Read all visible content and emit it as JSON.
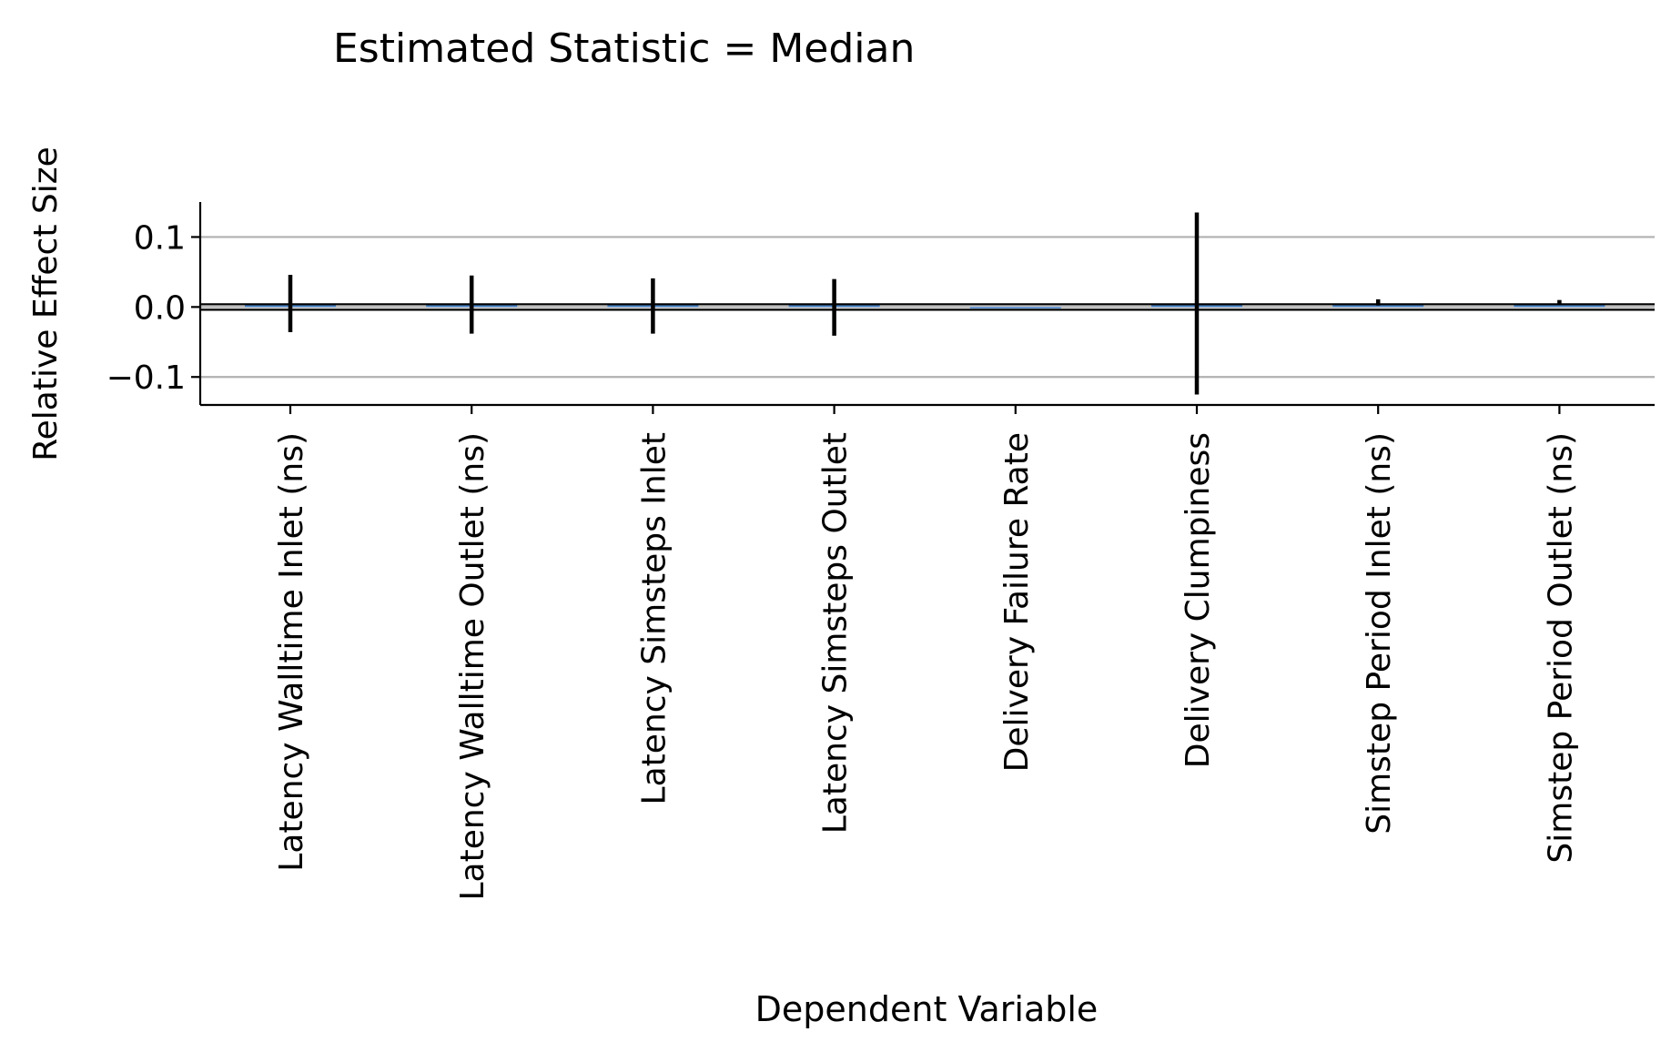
{
  "chart_data": {
    "type": "bar",
    "title": "Estimated Statistic = Median",
    "xlabel": "Dependent Variable",
    "ylabel": "Relative Effect Size",
    "ylim": [
      -0.14,
      0.15
    ],
    "yticks": [
      0.1,
      0.0,
      -0.1
    ],
    "ytick_labels": [
      "0.1",
      "0.0",
      "−0.1"
    ],
    "grid": "horizontal",
    "reference_line": 0.0,
    "categories": [
      "Latency Walltime Inlet (ns)",
      "Latency Walltime Outlet (ns)",
      "Latency Simsteps Inlet",
      "Latency Simsteps Outlet",
      "Delivery Failure Rate",
      "Delivery Clumpiness",
      "Simstep Period Inlet (ns)",
      "Simstep Period Outlet (ns)"
    ],
    "values": [
      0.004,
      0.004,
      0.003,
      0.003,
      0.0,
      0.004,
      0.004,
      0.004
    ],
    "error_low": [
      -0.036,
      -0.038,
      -0.038,
      -0.041,
      null,
      -0.125,
      0.002,
      0.003
    ],
    "error_high": [
      0.046,
      0.045,
      0.041,
      0.04,
      null,
      0.135,
      0.011,
      0.01
    ],
    "colors": {
      "bar": "#4c8bd6",
      "error": "#000000",
      "grid": "#b0b0b0",
      "axis": "#000000"
    }
  }
}
